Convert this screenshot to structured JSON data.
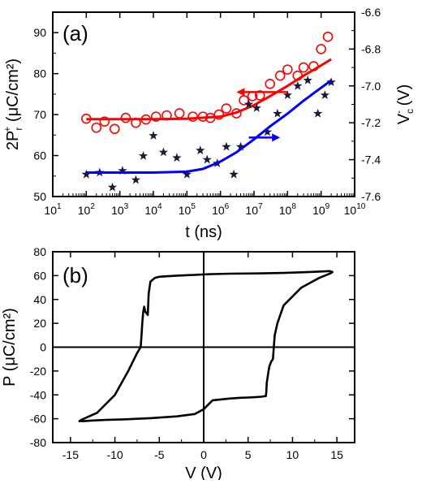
{
  "chart_data": [
    {
      "type": "scatter",
      "panel_label": "(a)",
      "xlabel": "t (ns)",
      "ylabel_left": {
        "main": "2P",
        "sub": "r",
        "sup": "+",
        "unit": " (μC/cm²)"
      },
      "ylabel_right": {
        "main": "V",
        "sub": "c",
        "sup": "-",
        "unit": " (V)"
      },
      "x_scale": "log",
      "xlim": [
        10,
        10000000000
      ],
      "x_tick_exponents": [
        1,
        2,
        3,
        4,
        5,
        6,
        7,
        8,
        9,
        10
      ],
      "x_tick_base": "10",
      "ylim_left": [
        50,
        95
      ],
      "y_ticks_left": [
        50,
        60,
        70,
        80,
        90
      ],
      "ylim_right": [
        -7.6,
        -6.6
      ],
      "y_ticks_right": [
        -7.6,
        -7.4,
        -7.2,
        -7.0,
        -6.8,
        -6.6
      ],
      "y_ticks_right_labels": [
        "-7.6",
        "-7.4",
        "-7.2",
        "-7.0",
        "-6.8",
        "-6.6"
      ],
      "grid": false,
      "series": [
        {
          "axis": "left",
          "marker": "open-circle",
          "color": "#ff0000",
          "x": [
            100,
            200,
            350,
            700,
            1500,
            3000,
            6000,
            12000,
            25000,
            60000,
            150000,
            300000,
            500000,
            900000,
            1500000,
            3000000,
            5000000,
            9000000,
            15000000,
            30000000,
            60000000,
            100000000,
            200000000,
            300000000,
            600000000,
            1000000000,
            1600000000
          ],
          "y": [
            69,
            66.8,
            68.3,
            66.5,
            69.2,
            68,
            68.8,
            69.5,
            69.8,
            70.3,
            69.5,
            69.5,
            69.2,
            70,
            71.5,
            70.3,
            73.5,
            74.5,
            74.7,
            77.5,
            79.5,
            81,
            79.5,
            81.5,
            81.8,
            86,
            89
          ]
        },
        {
          "axis": "left",
          "type": "line",
          "color": "#ff0000",
          "x": [
            100,
            1000,
            10000,
            100000,
            1000000,
            3000000,
            10000000,
            30000000,
            100000000,
            300000000,
            1000000000,
            2000000000
          ],
          "y": [
            68.9,
            68.9,
            68.9,
            69,
            69.5,
            70.5,
            72.3,
            74.5,
            77,
            79.5,
            82,
            83.5
          ]
        },
        {
          "axis": "right",
          "marker": "filled-star",
          "color": "#1a1a33",
          "x": [
            100,
            250,
            600,
            1200,
            3000,
            5000,
            10000,
            20000,
            50000,
            100000,
            250000,
            400000,
            800000,
            1500000,
            2500000,
            4000000,
            7000000,
            12000000,
            25000000,
            50000000,
            100000000,
            200000000,
            400000000,
            800000000,
            1300000000,
            2000000000
          ],
          "y": [
            -7.48,
            -7.47,
            -7.55,
            -7.46,
            -7.51,
            -7.38,
            -7.27,
            -7.36,
            -7.39,
            -7.48,
            -7.35,
            -7.4,
            -7.42,
            -7.33,
            -7.48,
            -7.33,
            -7.1,
            -7.12,
            -7.25,
            -7.15,
            -7.05,
            -7.0,
            -6.97,
            -7.15,
            -7.05,
            -6.98
          ]
        },
        {
          "axis": "right",
          "type": "line",
          "color": "#0000ff",
          "x": [
            100,
            1000,
            10000,
            100000,
            300000,
            1000000,
            3000000,
            10000000,
            30000000,
            100000000,
            300000000,
            1000000000,
            2000000000
          ],
          "y": [
            -7.47,
            -7.47,
            -7.47,
            -7.465,
            -7.45,
            -7.41,
            -7.36,
            -7.29,
            -7.22,
            -7.15,
            -7.08,
            -7.01,
            -6.97
          ]
        }
      ],
      "annotations": [
        {
          "type": "arrow",
          "direction": "left",
          "color": "#ff0000",
          "x_from": 100000000,
          "x_to": 3000000,
          "y": 75.5,
          "axis": "left"
        },
        {
          "type": "arrow",
          "direction": "right",
          "color": "#0000ff",
          "x_from": 7000000,
          "x_to": 60000000,
          "y": -7.28,
          "axis": "right"
        }
      ]
    },
    {
      "type": "line",
      "panel_label": "(b)",
      "xlabel": "V (V)",
      "ylabel": {
        "main": "P",
        "unit": " (μC/cm²)"
      },
      "xlim": [
        -17,
        17
      ],
      "x_ticks": [
        -15,
        -10,
        -5,
        0,
        5,
        10,
        15
      ],
      "ylim": [
        -80,
        80
      ],
      "y_ticks": [
        -80,
        -60,
        -40,
        -20,
        0,
        20,
        40,
        60,
        80
      ],
      "zero_lines": true,
      "grid": false,
      "series": [
        {
          "color": "#000000",
          "x": [
            0,
            1,
            3,
            6,
            9,
            11,
            12.5,
            13.5,
            14.2,
            14.5,
            14.3,
            13,
            11,
            9,
            8.3,
            8.0,
            7.9,
            7.8,
            7.6,
            7.4,
            7.3,
            7.2,
            7.1,
            7.05,
            7.0,
            6.5,
            6,
            5,
            4,
            3,
            2,
            1,
            0,
            -1,
            -3,
            -6,
            -9,
            -11,
            -12.5,
            -13.5,
            -14,
            -13.8,
            -12,
            -10,
            -8.5,
            -7.5,
            -7.1,
            -7.0,
            -6.9,
            -6.8,
            -6.7,
            -6.6,
            -6.3,
            -6.2,
            -6.0,
            -5.5,
            -5.0,
            -4.0,
            -3.0,
            -2.0,
            -1.0,
            0
          ],
          "y": [
            61,
            61.3,
            61.6,
            61.8,
            62.2,
            62.8,
            63.2,
            63.5,
            63.8,
            63,
            62,
            58,
            50,
            35,
            20,
            10,
            0,
            -10,
            -12,
            -16,
            -20,
            -25,
            -30,
            -38,
            -41,
            -41.5,
            -41.8,
            -42.2,
            -42.5,
            -43,
            -43.8,
            -44.5,
            -52,
            -56,
            -58,
            -59.5,
            -60.5,
            -61,
            -61.5,
            -62,
            -62,
            -61,
            -55,
            -40,
            -20,
            -5,
            0,
            10,
            22,
            30,
            34,
            30,
            27,
            45,
            55,
            58,
            59,
            59.5,
            60,
            60.3,
            60.6,
            61
          ]
        }
      ]
    }
  ]
}
